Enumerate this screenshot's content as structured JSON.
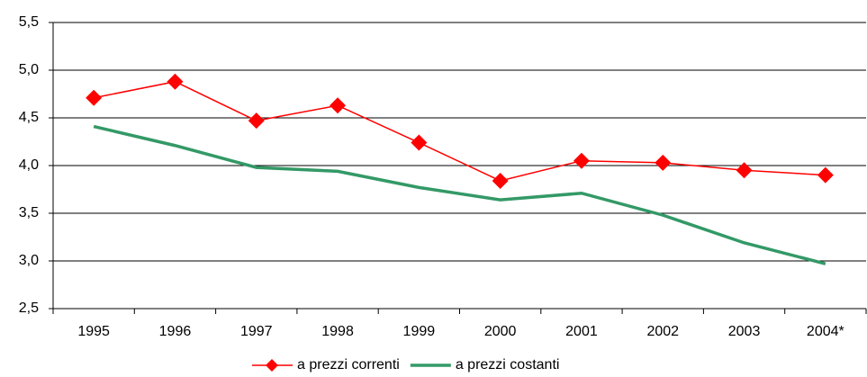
{
  "chart_data": {
    "type": "line",
    "categories": [
      "1995",
      "1996",
      "1997",
      "1998",
      "1999",
      "2000",
      "2001",
      "2002",
      "2003",
      "2004*"
    ],
    "series": [
      {
        "name": "a prezzi correnti",
        "color": "#ff0000",
        "marker": "diamond",
        "values": [
          4.71,
          4.88,
          4.47,
          4.63,
          4.24,
          3.84,
          4.05,
          4.03,
          3.95,
          3.9
        ]
      },
      {
        "name": "a prezzi costanti",
        "color": "#339966",
        "values": [
          4.41,
          4.21,
          3.98,
          3.94,
          3.77,
          3.64,
          3.71,
          3.48,
          3.19,
          2.97
        ]
      }
    ],
    "ylim": [
      2.5,
      5.5
    ],
    "yticks": [
      {
        "value": 2.5,
        "label": "2,5"
      },
      {
        "value": 3.0,
        "label": "3,0"
      },
      {
        "value": 3.5,
        "label": "3,5"
      },
      {
        "value": 4.0,
        "label": "4,0"
      },
      {
        "value": 4.5,
        "label": "4,5"
      },
      {
        "value": 5.0,
        "label": "5,0"
      },
      {
        "value": 5.5,
        "label": "5,5"
      }
    ],
    "grid": true,
    "legend": "bottom"
  }
}
